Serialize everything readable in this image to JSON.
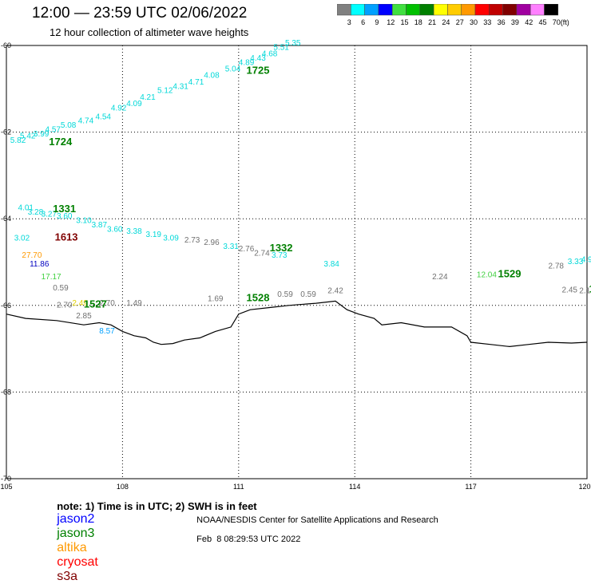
{
  "header": {
    "title": "12:00 — 23:59 UTC 02/06/2022",
    "subtitle": "12 hour collection of altimeter wave heights"
  },
  "colorbar": {
    "unit": "(ft)",
    "items": [
      {
        "label": "3",
        "color": "#808080"
      },
      {
        "label": "6",
        "color": "#00ffff"
      },
      {
        "label": "9",
        "color": "#00a0ff"
      },
      {
        "label": "12",
        "color": "#0000ff"
      },
      {
        "label": "15",
        "color": "#40e040"
      },
      {
        "label": "18",
        "color": "#00c000"
      },
      {
        "label": "21",
        "color": "#008000"
      },
      {
        "label": "24",
        "color": "#ffff00"
      },
      {
        "label": "27",
        "color": "#ffcc00"
      },
      {
        "label": "30",
        "color": "#ff9900"
      },
      {
        "label": "33",
        "color": "#ff0000"
      },
      {
        "label": "36",
        "color": "#c00000"
      },
      {
        "label": "39",
        "color": "#800000"
      },
      {
        "label": "42",
        "color": "#a000a0"
      },
      {
        "label": "45",
        "color": "#ff80ff"
      },
      {
        "label": "70",
        "color": "#000000"
      }
    ]
  },
  "map": {
    "lon_range": [
      -105,
      -120
    ],
    "lat_range": [
      -60,
      -70
    ],
    "x_ticks": [
      "105",
      "108",
      "111",
      "114",
      "117",
      "120"
    ],
    "y_ticks": [
      "-60",
      "-62",
      "-64",
      "-66",
      "-68",
      "-70"
    ],
    "coastline": [
      [
        -105,
        -66.2
      ],
      [
        -105.5,
        -66.3
      ],
      [
        -106.3,
        -66.35
      ],
      [
        -107,
        -66.45
      ],
      [
        -107.4,
        -66.4
      ],
      [
        -107.7,
        -66.45
      ],
      [
        -108,
        -66.6
      ],
      [
        -108.3,
        -66.7
      ],
      [
        -108.6,
        -66.75
      ],
      [
        -108.8,
        -66.85
      ],
      [
        -109,
        -66.9
      ],
      [
        -109.3,
        -66.88
      ],
      [
        -109.6,
        -66.8
      ],
      [
        -110,
        -66.75
      ],
      [
        -110.4,
        -66.6
      ],
      [
        -110.8,
        -66.5
      ],
      [
        -111,
        -66.2
      ],
      [
        -111.3,
        -66.1
      ],
      [
        -111.8,
        -66.05
      ],
      [
        -112.3,
        -66
      ],
      [
        -113,
        -65.95
      ],
      [
        -113.5,
        -65.9
      ],
      [
        -113.8,
        -66.1
      ],
      [
        -114.1,
        -66.2
      ],
      [
        -114.5,
        -66.3
      ],
      [
        -114.7,
        -66.45
      ],
      [
        -115.2,
        -66.4
      ],
      [
        -115.8,
        -66.5
      ],
      [
        -116.5,
        -66.5
      ],
      [
        -116.9,
        -66.7
      ],
      [
        -117,
        -66.85
      ],
      [
        -117.5,
        -66.9
      ],
      [
        -118,
        -66.95
      ],
      [
        -118.5,
        -66.9
      ],
      [
        -119,
        -66.85
      ],
      [
        -119.6,
        -66.87
      ],
      [
        -120,
        -66.85
      ]
    ],
    "observations": [
      {
        "text": "5.35",
        "lon": -112.2,
        "lat": -60.0,
        "sat": "jason2"
      },
      {
        "text": "5.51",
        "lon": -111.9,
        "lat": -60.1,
        "sat": "jason2"
      },
      {
        "text": "4.68",
        "lon": -111.6,
        "lat": -60.25,
        "sat": "jason2"
      },
      {
        "text": "4.43",
        "lon": -111.3,
        "lat": -60.35,
        "sat": "jason2"
      },
      {
        "text": "4.89",
        "lon": -111.0,
        "lat": -60.45,
        "sat": "jason2"
      },
      {
        "text": "5.04",
        "lon": -110.65,
        "lat": -60.6,
        "sat": "jason2"
      },
      {
        "text": "4.08",
        "lon": -110.1,
        "lat": -60.75,
        "sat": "jason2"
      },
      {
        "text": "4.71",
        "lon": -109.7,
        "lat": -60.9,
        "sat": "jason2"
      },
      {
        "text": "4.31",
        "lon": -109.3,
        "lat": -61.0,
        "sat": "jason2"
      },
      {
        "text": "5.12",
        "lon": -108.9,
        "lat": -61.1,
        "sat": "jason2"
      },
      {
        "text": "4.21",
        "lon": -108.45,
        "lat": -61.25,
        "sat": "jason2"
      },
      {
        "text": "4.09",
        "lon": -108.1,
        "lat": -61.4,
        "sat": "jason2"
      },
      {
        "text": "4.92",
        "lon": -107.7,
        "lat": -61.5,
        "sat": "jason2"
      },
      {
        "text": "4.54",
        "lon": -107.3,
        "lat": -61.7,
        "sat": "jason2"
      },
      {
        "text": "4.74",
        "lon": -106.85,
        "lat": -61.8,
        "sat": "jason2"
      },
      {
        "text": "5.08",
        "lon": -106.4,
        "lat": -61.9,
        "sat": "jason2"
      },
      {
        "text": "4.57",
        "lon": -106.0,
        "lat": -62.0,
        "sat": "jason2"
      },
      {
        "text": "3.99",
        "lon": -105.7,
        "lat": -62.1,
        "sat": "jason2"
      },
      {
        "text": "5.42",
        "lon": -105.35,
        "lat": -62.15,
        "sat": "jason2"
      },
      {
        "text": "5.82",
        "lon": -105.1,
        "lat": -62.25,
        "sat": "jason2"
      },
      {
        "text": "4.01",
        "lon": -105.3,
        "lat": -63.8,
        "sat": "jason2"
      },
      {
        "text": "3.28",
        "lon": -105.55,
        "lat": -63.9,
        "sat": "jason2"
      },
      {
        "text": "3.27",
        "lon": -105.9,
        "lat": -63.95,
        "sat": "jason2"
      },
      {
        "text": "3.60",
        "lon": -106.3,
        "lat": -64.0,
        "sat": "jason2"
      },
      {
        "text": "3.10",
        "lon": -106.8,
        "lat": -64.1,
        "sat": "jason2"
      },
      {
        "text": "3.87",
        "lon": -107.2,
        "lat": -64.2,
        "sat": "jason2"
      },
      {
        "text": "3.60",
        "lon": -107.6,
        "lat": -64.3,
        "sat": "jason2"
      },
      {
        "text": "3.38",
        "lon": -108.1,
        "lat": -64.35,
        "sat": "jason2"
      },
      {
        "text": "3.19",
        "lon": -108.6,
        "lat": -64.42,
        "sat": "jason2"
      },
      {
        "text": "3.09",
        "lon": -109.05,
        "lat": -64.5,
        "sat": "jason2"
      },
      {
        "text": "2.73",
        "lon": -109.6,
        "lat": -64.55,
        "sat": "grey"
      },
      {
        "text": "2.96",
        "lon": -110.1,
        "lat": -64.6,
        "sat": "grey"
      },
      {
        "text": "3.31",
        "lon": -110.6,
        "lat": -64.7,
        "sat": "jason2"
      },
      {
        "text": "2.76",
        "lon": -111.0,
        "lat": -64.75,
        "sat": "grey"
      },
      {
        "text": "2.74",
        "lon": -111.4,
        "lat": -64.85,
        "sat": "grey"
      },
      {
        "text": "3.73",
        "lon": -111.85,
        "lat": -64.9,
        "sat": "jason2"
      },
      {
        "text": "3.84",
        "lon": -113.2,
        "lat": -65.1,
        "sat": "jason2"
      },
      {
        "text": "2.24",
        "lon": -116.0,
        "lat": -65.4,
        "sat": "grey"
      },
      {
        "text": "12.04",
        "lon": -117.15,
        "lat": -65.35,
        "sat": "lightgreen"
      },
      {
        "text": "2.78",
        "lon": -119.0,
        "lat": -65.15,
        "sat": "grey"
      },
      {
        "text": "3.33",
        "lon": -119.5,
        "lat": -65.05,
        "sat": "jason2"
      },
      {
        "text": "4.9",
        "lon": -119.85,
        "lat": -65.0,
        "sat": "jason2"
      },
      {
        "text": "2.45",
        "lon": -119.35,
        "lat": -65.7,
        "sat": "grey"
      },
      {
        "text": "2.1",
        "lon": -119.8,
        "lat": -65.72,
        "sat": "grey"
      },
      {
        "text": "3.02",
        "lon": -105.2,
        "lat": -64.5,
        "sat": "jason2"
      },
      {
        "text": "27.70",
        "lon": -105.4,
        "lat": -64.9,
        "sat": "altika"
      },
      {
        "text": "11.86",
        "lon": -105.6,
        "lat": -65.1,
        "sat": "blue"
      },
      {
        "text": "17.17",
        "lon": -105.9,
        "lat": -65.4,
        "sat": "lightgreen"
      },
      {
        "text": "0.59",
        "lon": -106.2,
        "lat": -65.65,
        "sat": "grey"
      },
      {
        "text": "2.70",
        "lon": -106.3,
        "lat": -66.05,
        "sat": "grey"
      },
      {
        "text": "2.49",
        "lon": -106.7,
        "lat": -66.0,
        "sat": "yellow"
      },
      {
        "text": "2.70",
        "lon": -107.4,
        "lat": -66.0,
        "sat": "grey"
      },
      {
        "text": "1.49",
        "lon": -108.1,
        "lat": -66.0,
        "sat": "grey"
      },
      {
        "text": "2.85",
        "lon": -106.8,
        "lat": -66.3,
        "sat": "grey"
      },
      {
        "text": "8.57",
        "lon": -107.4,
        "lat": -66.65,
        "sat": "skyblue"
      },
      {
        "text": "1.69",
        "lon": -110.2,
        "lat": -65.9,
        "sat": "grey"
      },
      {
        "text": "0.59",
        "lon": -112.0,
        "lat": -65.8,
        "sat": "grey"
      },
      {
        "text": "0.59",
        "lon": -112.6,
        "lat": -65.8,
        "sat": "grey"
      },
      {
        "text": "2.42",
        "lon": -113.3,
        "lat": -65.72,
        "sat": "grey"
      }
    ],
    "time_labels": [
      {
        "text": "1725",
        "lon": -111.2,
        "lat": -60.65,
        "sat": "jason3"
      },
      {
        "text": "1724",
        "lon": -106.1,
        "lat": -62.3,
        "sat": "jason3"
      },
      {
        "text": "1331",
        "lon": -106.2,
        "lat": -63.85,
        "sat": "jason3"
      },
      {
        "text": "1613",
        "lon": -106.25,
        "lat": -64.5,
        "sat": "cryosat"
      },
      {
        "text": "1332",
        "lon": -111.8,
        "lat": -64.75,
        "sat": "jason3"
      },
      {
        "text": "1529",
        "lon": -117.7,
        "lat": -65.35,
        "sat": "jason3"
      },
      {
        "text": "1527",
        "lon": -107.0,
        "lat": -66.05,
        "sat": "jason3"
      },
      {
        "text": "1528",
        "lon": -111.2,
        "lat": -65.9,
        "sat": "jason3"
      },
      {
        "text": "1",
        "lon": -120.05,
        "lat": -65.7,
        "sat": "jason3"
      }
    ]
  },
  "colors": {
    "jason2": "#00d8d8",
    "jason3": "#008000",
    "altika": "#ff9900",
    "cryosat": "#800000",
    "grey": "#707070",
    "lightgreen": "#40d040",
    "blue": "#0000c0",
    "yellow": "#e0d000",
    "skyblue": "#00a0ff",
    "legend_jason2": "#0000ff",
    "legend_jason3": "#008000",
    "legend_altika": "#ff9900",
    "legend_cryosat": "#ff0000",
    "legend_s3a": "#800000"
  },
  "legend": {
    "note": "note: 1) Time is in UTC; 2) SWH is in feet",
    "sats": [
      "jason2",
      "jason3",
      "altika",
      "cryosat",
      "s3a"
    ]
  },
  "footer": {
    "credit": "NOAA/NESDIS Center for Satellite Applications and Research",
    "timestamp": "Feb  8 08:29:53 UTC 2022"
  }
}
